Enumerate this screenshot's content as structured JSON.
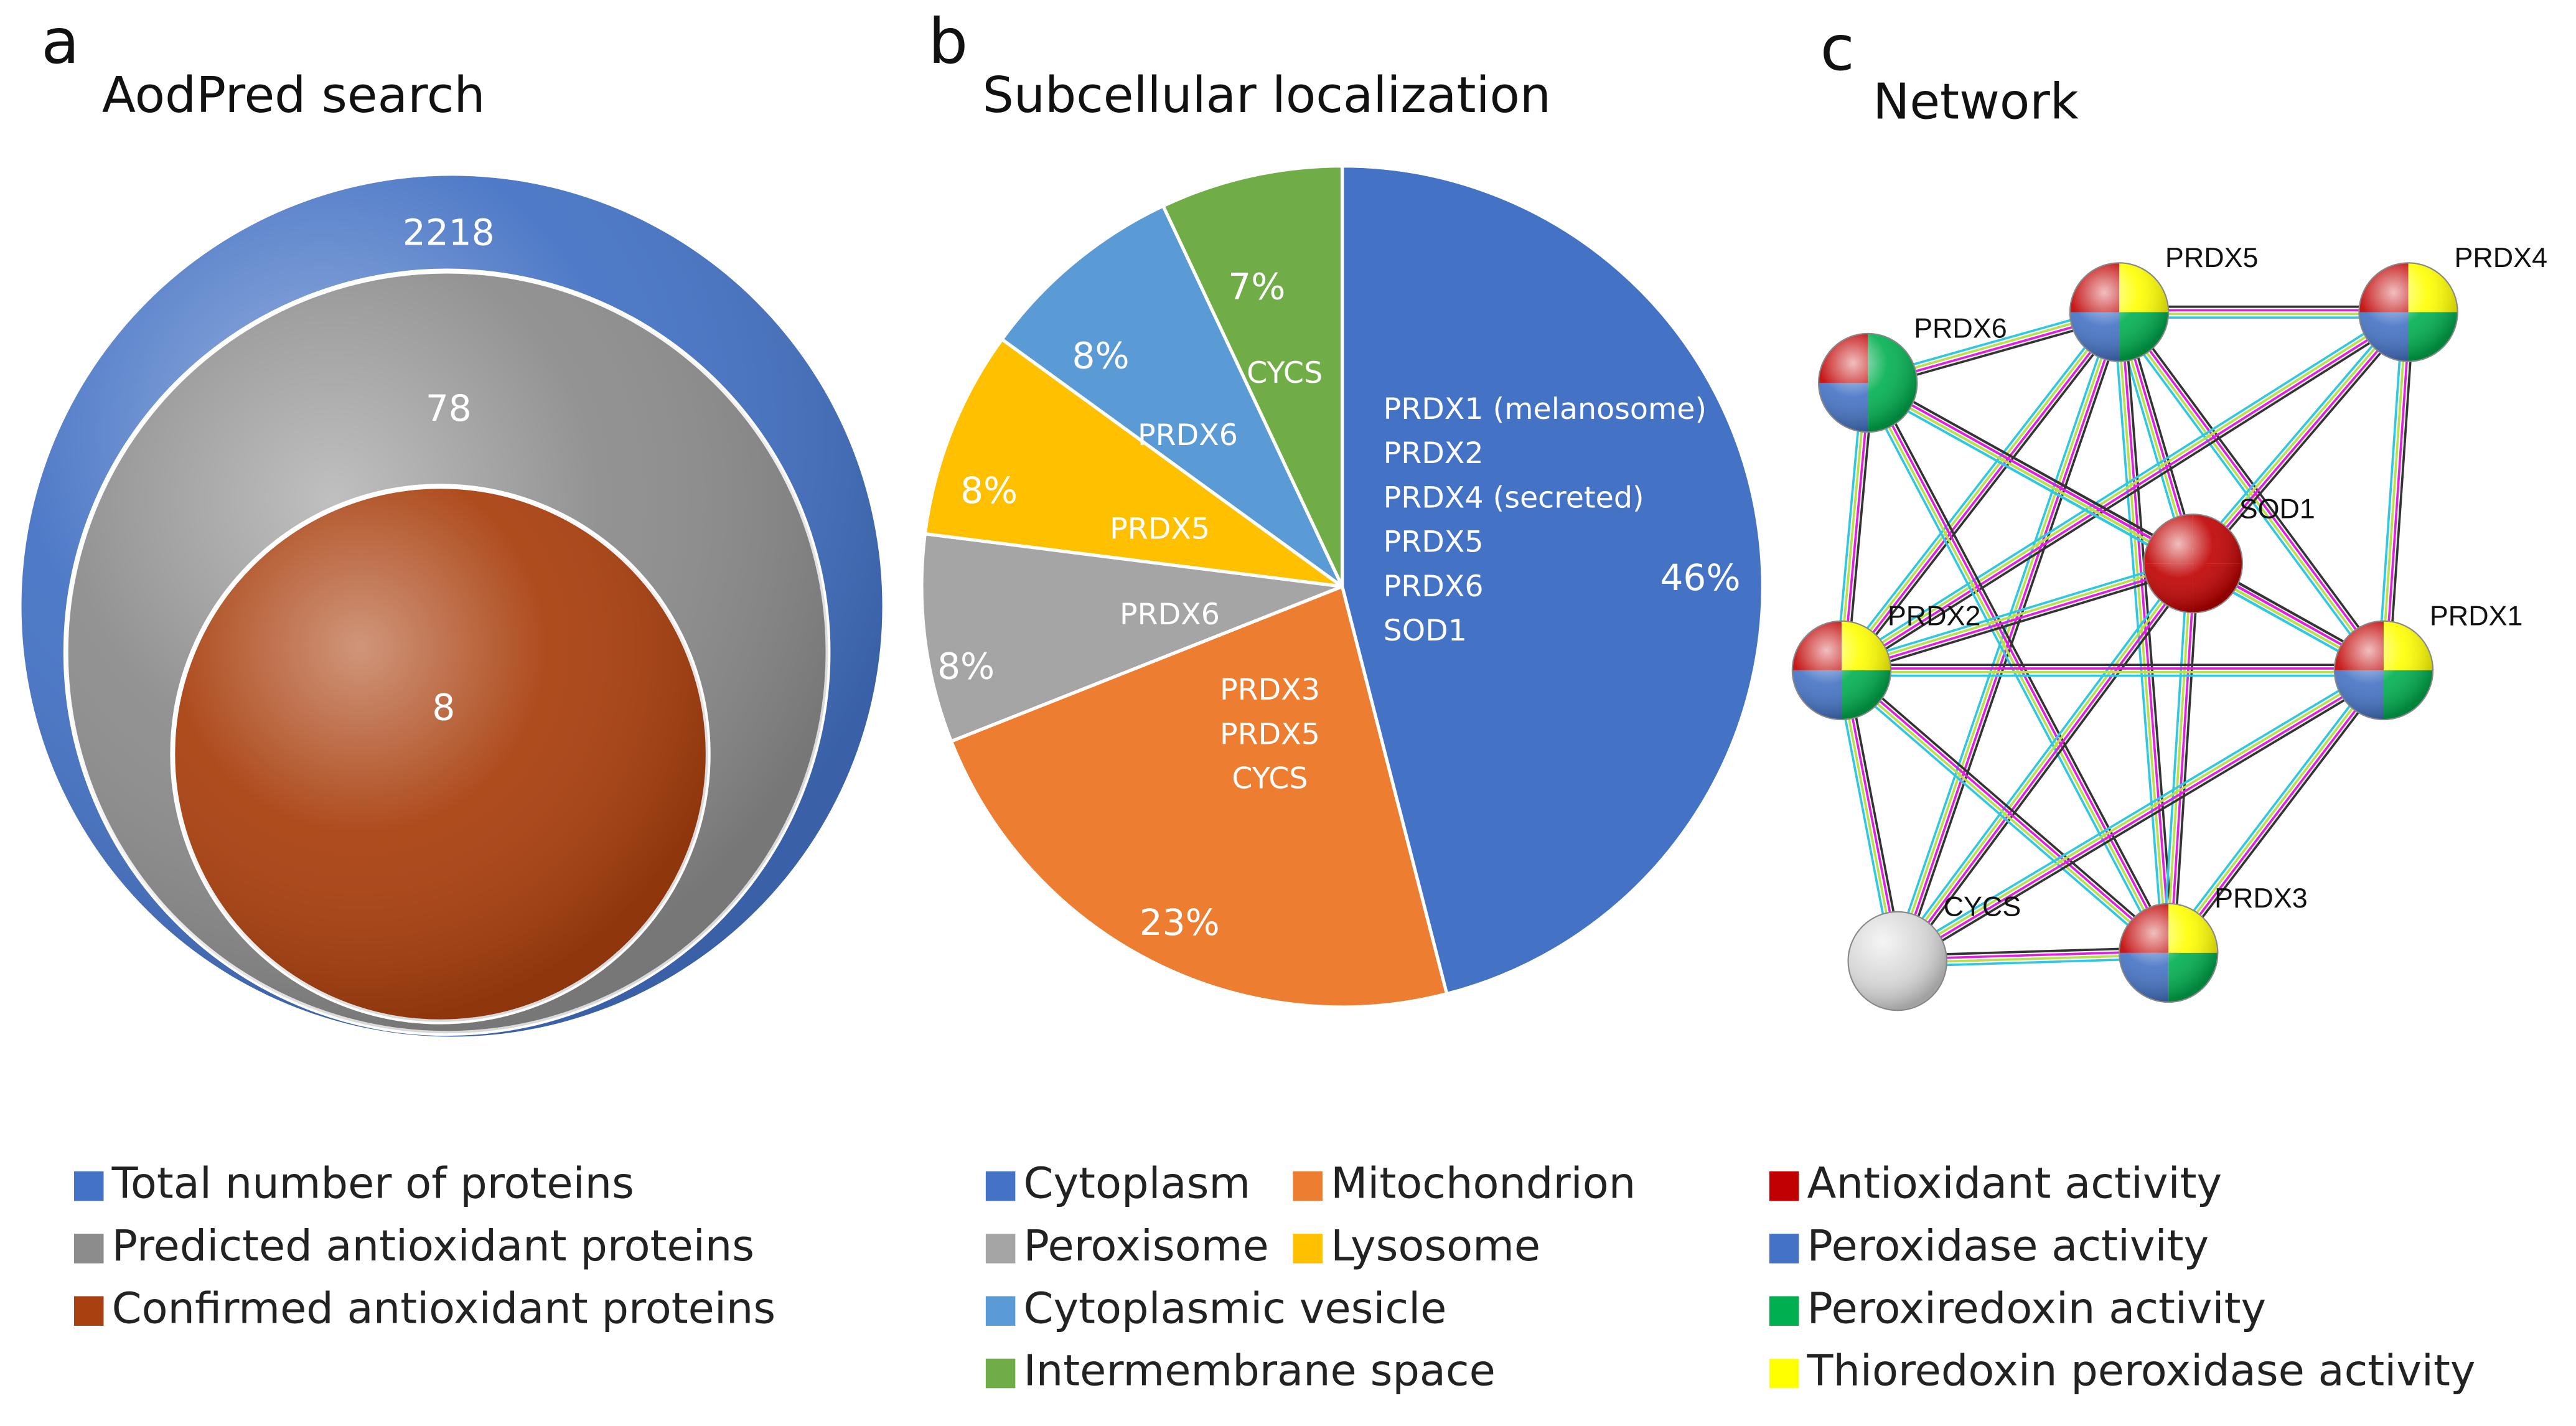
{
  "chart_data": [
    {
      "type": "nested-circles",
      "panel_label": "a",
      "title": "AodPred search",
      "series": [
        {
          "name": "Total number of proteins",
          "color": "#4472c4",
          "values": [
            2218
          ]
        },
        {
          "name": "Predicted antioxidant proteins",
          "color": "#8c8c8c",
          "values": [
            78
          ]
        },
        {
          "name": "Confirmed antioxidant proteins",
          "color": "#a9400f",
          "values": [
            8
          ]
        }
      ],
      "legend": "bottom"
    },
    {
      "type": "pie",
      "panel_label": "b",
      "title": "Subcellular localization",
      "categories": [
        "Cytoplasm",
        "Mitochondrion",
        "Peroxisome",
        "Lysosome",
        "Cytoplasmic vesicle",
        "Intermembrane space"
      ],
      "values": [
        46,
        23,
        8,
        8,
        8,
        7
      ],
      "value_labels": [
        "46%",
        "23%",
        "8%",
        "8%",
        "8%",
        "7%"
      ],
      "colors": [
        "#4472c4",
        "#ed7d31",
        "#a5a5a5",
        "#ffc000",
        "#5b9bd5",
        "#70ad47"
      ],
      "slice_labels": [
        [
          "PRDX1 (melanosome)",
          "PRDX2",
          "PRDX4 (secreted)",
          "PRDX5",
          "PRDX6",
          "SOD1"
        ],
        [
          "PRDX3",
          "PRDX5",
          "CYCS"
        ],
        [
          "PRDX6"
        ],
        [
          "PRDX5"
        ],
        [
          "PRDX6"
        ],
        [
          "CYCS"
        ]
      ],
      "legend": "bottom"
    },
    {
      "type": "network",
      "panel_label": "c",
      "title": "Network",
      "nodes": [
        "PRDX5",
        "PRDX4",
        "PRDX6",
        "SOD1",
        "PRDX2",
        "PRDX1",
        "CYCS",
        "PRDX3"
      ],
      "legend_items": [
        {
          "name": "Antioxidant activity",
          "color": "#c00000"
        },
        {
          "name": "Peroxidase activity",
          "color": "#4472c4"
        },
        {
          "name": "Peroxiredoxin activity",
          "color": "#00b050"
        },
        {
          "name": "Thioredoxin peroxidase activity",
          "color": "#ffff00"
        }
      ],
      "legend": "bottom"
    }
  ]
}
